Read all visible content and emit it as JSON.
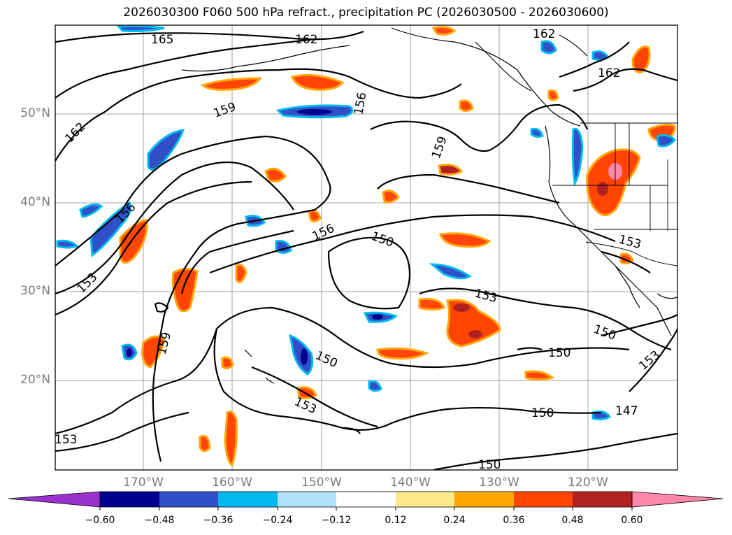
{
  "title": "2026030300 F060 500 hPa refract., precipitation PC (2026030500 - 2026030600)",
  "latitude_labels": [
    "50°N",
    "40°N",
    "30°N",
    "20°N"
  ],
  "longitude_labels": [
    "170°W",
    "160°W",
    "150°W",
    "140°W",
    "130°W",
    "120°W"
  ],
  "contour_labels": [
    "165",
    "162",
    "162",
    "162",
    "159",
    "162",
    "156",
    "159",
    "156",
    "150",
    "156",
    "153",
    "153",
    "159",
    "150",
    "153",
    "150",
    "150",
    "153",
    "153",
    "147",
    "150",
    "150",
    "153"
  ],
  "colorbar": {
    "colors": [
      "#9932cc",
      "#000090",
      "#3050c8",
      "#00b8f0",
      "#b0e0f8",
      "#ffffff",
      "#ffe88c",
      "#ffa500",
      "#ff4500",
      "#b22222",
      "#ff88aa"
    ],
    "tick_labels": [
      "−0.60",
      "−0.48",
      "−0.36",
      "−0.24",
      "−0.12",
      "0.12",
      "0.24",
      "0.36",
      "0.48",
      "0.60"
    ]
  }
}
